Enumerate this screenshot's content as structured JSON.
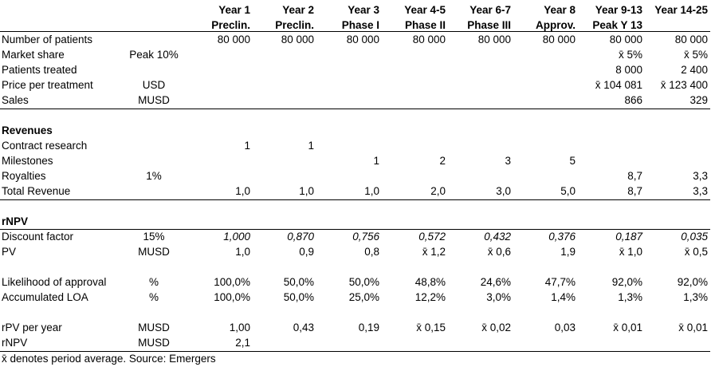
{
  "columns": [
    {
      "l1": "Year 1",
      "l2": "Preclin."
    },
    {
      "l1": "Year 2",
      "l2": "Preclin."
    },
    {
      "l1": "Year 3",
      "l2": "Phase I"
    },
    {
      "l1": "Year 4-5",
      "l2": "Phase II"
    },
    {
      "l1": "Year 6-7",
      "l2": "Phase III"
    },
    {
      "l1": "Year 8",
      "l2": "Approv."
    },
    {
      "l1": "Year 9-13",
      "l2": "Peak Y 13"
    },
    {
      "l1": "Year 14-25",
      "l2": ""
    }
  ],
  "rows": [
    {
      "label": "Number of patients",
      "unit": "",
      "values": [
        "80 000",
        "80 000",
        "80 000",
        "80 000",
        "80 000",
        "80 000",
        "80 000",
        "80 000"
      ]
    },
    {
      "label": "Market share",
      "unit": "Peak 10%",
      "values": [
        "",
        "",
        "",
        "",
        "",
        "",
        "x̄ 5%",
        "x̄ 5%"
      ]
    },
    {
      "label": "Patients treated",
      "unit": "",
      "values": [
        "",
        "",
        "",
        "",
        "",
        "",
        "8 000",
        "2 400"
      ]
    },
    {
      "label": "Price per treatment",
      "unit": "USD",
      "values": [
        "",
        "",
        "",
        "",
        "",
        "",
        "x̄ 104 081",
        "x̄ 123 400"
      ]
    },
    {
      "label": "Sales",
      "unit": "MUSD",
      "values": [
        "",
        "",
        "",
        "",
        "",
        "",
        "866",
        "329"
      ]
    },
    {
      "label": "Revenues",
      "unit": "",
      "values": []
    },
    {
      "label": "Contract research",
      "unit": "",
      "values": [
        "1",
        "1",
        "",
        "",
        "",
        "",
        "",
        ""
      ]
    },
    {
      "label": "Milestones",
      "unit": "",
      "values": [
        "",
        "",
        "1",
        "2",
        "3",
        "5",
        "",
        ""
      ]
    },
    {
      "label": "Royalties",
      "unit": "1%",
      "values": [
        "",
        "",
        "",
        "",
        "",
        "",
        "8,7",
        "3,3"
      ]
    },
    {
      "label": "Total Revenue",
      "unit": "",
      "values": [
        "1,0",
        "1,0",
        "1,0",
        "2,0",
        "3,0",
        "5,0",
        "8,7",
        "3,3"
      ]
    },
    {
      "label": "rNPV",
      "unit": "",
      "values": []
    },
    {
      "label": "Discount factor",
      "unit": "15%",
      "values": [
        "1,000",
        "0,870",
        "0,756",
        "0,572",
        "0,432",
        "0,376",
        "0,187",
        "0,035"
      ]
    },
    {
      "label": "PV",
      "unit": "MUSD",
      "values": [
        "1,0",
        "0,9",
        "0,8",
        "x̄ 1,2",
        "x̄ 0,6",
        "1,9",
        "x̄ 1,0",
        "x̄ 0,5"
      ]
    },
    {
      "label": "Likelihood of approval",
      "unit": "%",
      "values": [
        "100,0%",
        "50,0%",
        "50,0%",
        "48,8%",
        "24,6%",
        "47,7%",
        "92,0%",
        "92,0%"
      ]
    },
    {
      "label": "Accumulated LOA",
      "unit": "%",
      "values": [
        "100,0%",
        "50,0%",
        "25,0%",
        "12,2%",
        "3,0%",
        "1,4%",
        "1,3%",
        "1,3%"
      ]
    },
    {
      "label": "rPV per year",
      "unit": "MUSD",
      "values": [
        "1,00",
        "0,43",
        "0,19",
        "x̄ 0,15",
        "x̄ 0,02",
        "0,03",
        "x̄ 0,01",
        "x̄ 0,01"
      ]
    },
    {
      "label": "rNPV",
      "unit": "MUSD",
      "values": [
        "2,1",
        "",
        "",
        "",
        "",
        "",
        "",
        ""
      ]
    }
  ],
  "footnote": "x̄ denotes period average. Source: Emergers"
}
